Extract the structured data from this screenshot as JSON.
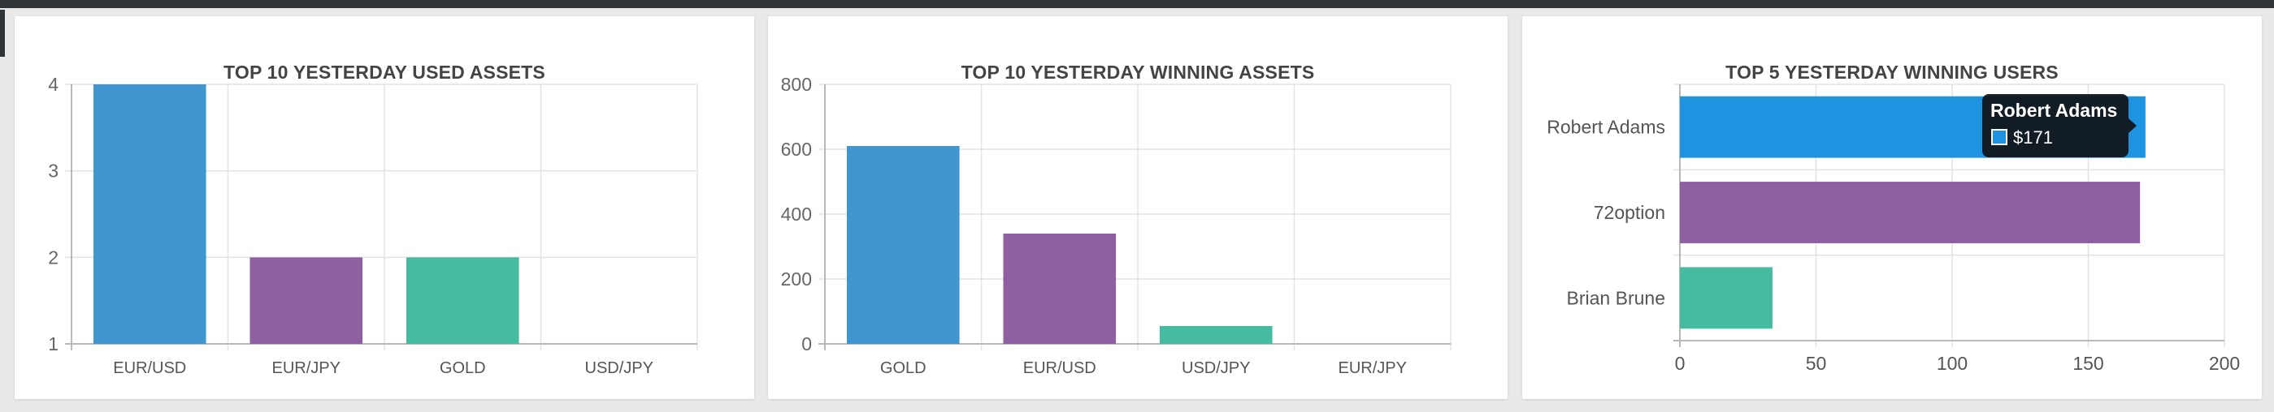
{
  "charts": [
    {
      "title": "TOP 10 YESTERDAY USED ASSETS",
      "chart_data": {
        "type": "bar",
        "orientation": "vertical",
        "categories": [
          "EUR/USD",
          "EUR/JPY",
          "GOLD",
          "USD/JPY"
        ],
        "values": [
          4,
          2,
          2,
          1
        ],
        "colors": [
          "#4296cf",
          "#8e60a2",
          "#45bb9f",
          "#d2d2d2"
        ],
        "ylim": [
          1,
          4
        ],
        "yticks": [
          "4",
          "3",
          "2",
          "1"
        ],
        "grid": true,
        "legend": "none"
      }
    },
    {
      "title": "TOP 10 YESTERDAY WINNING ASSETS",
      "chart_data": {
        "type": "bar",
        "orientation": "vertical",
        "categories": [
          "GOLD",
          "EUR/USD",
          "USD/JPY",
          "EUR/JPY"
        ],
        "values": [
          610,
          340,
          55,
          0
        ],
        "colors": [
          "#4296cf",
          "#8e60a2",
          "#45bb9f",
          "#d2d2d2"
        ],
        "ylim": [
          0,
          800
        ],
        "yticks": [
          "800",
          "600",
          "400",
          "200",
          "0"
        ],
        "grid": true,
        "legend": "none"
      }
    },
    {
      "title": "TOP 5 YESTERDAY WINNING USERS",
      "chart_data": {
        "type": "bar",
        "orientation": "horizontal",
        "categories": [
          "Robert Adams",
          "72option",
          "Brian Brune"
        ],
        "values": [
          171,
          169,
          34
        ],
        "colors": [
          "#1e93e0",
          "#8e60a2",
          "#45bb9f"
        ],
        "xlim": [
          0,
          200
        ],
        "xticks": [
          "0",
          "50",
          "100",
          "150",
          "200"
        ],
        "grid": true,
        "legend": "none",
        "tooltip": {
          "title": "Robert Adams",
          "value": "$171",
          "swatch": "#1e93e0"
        }
      }
    }
  ]
}
